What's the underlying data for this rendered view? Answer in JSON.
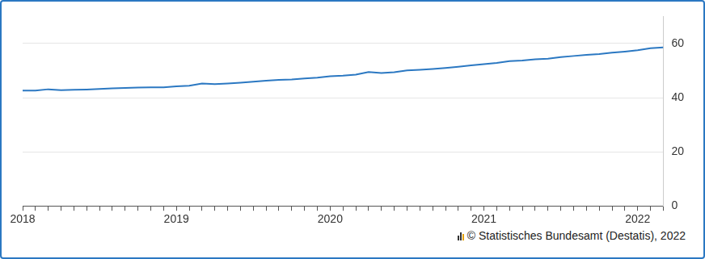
{
  "chart_data": {
    "type": "line",
    "categories": [
      "2018",
      null,
      null,
      null,
      null,
      null,
      null,
      null,
      null,
      null,
      null,
      null,
      "2019",
      null,
      null,
      null,
      null,
      null,
      null,
      null,
      null,
      null,
      null,
      null,
      "2020",
      null,
      null,
      null,
      null,
      null,
      null,
      null,
      null,
      null,
      null,
      null,
      "2021",
      null,
      null,
      null,
      null,
      null,
      null,
      null,
      null,
      null,
      null,
      null,
      "2022",
      null,
      null
    ],
    "values": [
      42.6,
      42.6,
      43.1,
      42.8,
      42.9,
      43.0,
      43.2,
      43.4,
      43.6,
      43.7,
      43.8,
      43.8,
      44.2,
      44.4,
      45.2,
      45.0,
      45.2,
      45.5,
      45.9,
      46.3,
      46.6,
      46.7,
      47.1,
      47.4,
      47.9,
      48.1,
      48.5,
      49.5,
      49.1,
      49.4,
      50.1,
      50.3,
      50.6,
      51.0,
      51.4,
      51.9,
      52.4,
      52.8,
      53.5,
      53.7,
      54.2,
      54.4,
      55.0,
      55.4,
      55.8,
      56.1,
      56.6,
      57.0,
      57.5,
      58.3,
      58.6
    ],
    "color": "#2b78c2",
    "ylim": [
      0,
      70
    ],
    "yticks": [
      0,
      20,
      40,
      60
    ],
    "grid": true,
    "source": "© Statistisches Bundesamt (Destatis), 2022"
  }
}
